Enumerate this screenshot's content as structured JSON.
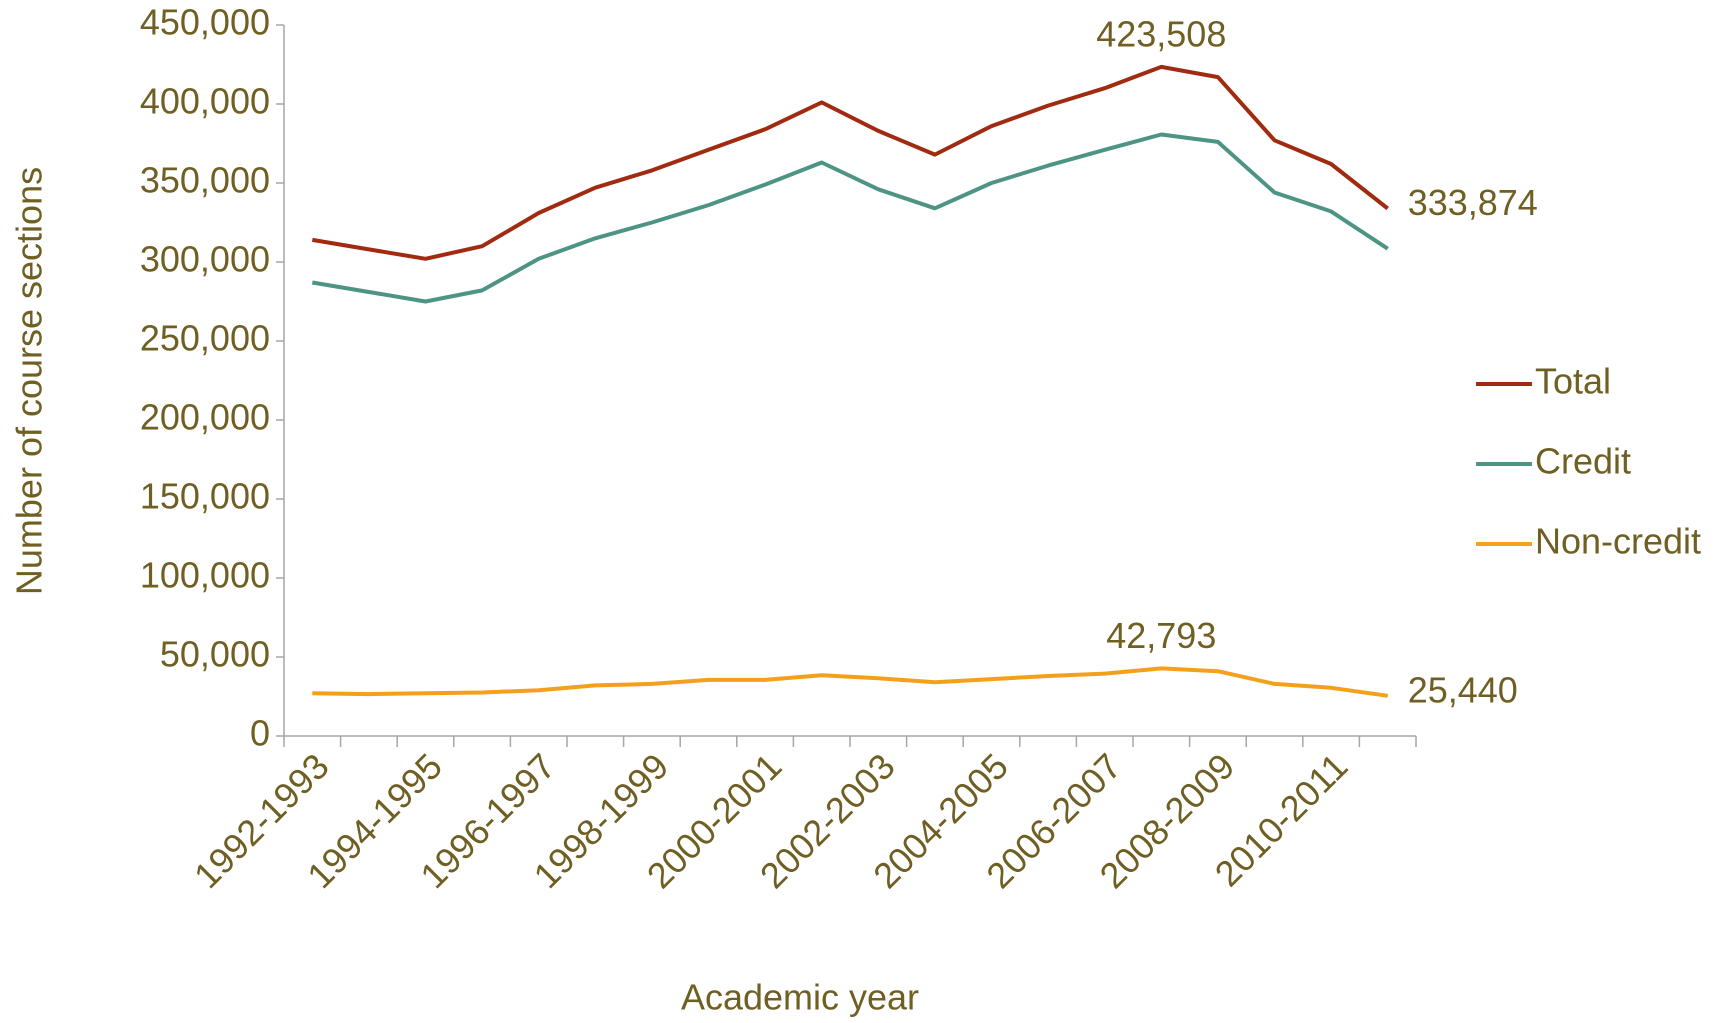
{
  "chart_data": {
    "type": "line",
    "x_label": "Academic year",
    "y_label": "Number of course sections",
    "categories": [
      "1992-1993",
      null,
      "1994-1995",
      null,
      "1996-1997",
      null,
      "1998-1999",
      null,
      "2000-2001",
      null,
      "2002-2003",
      null,
      "2004-2005",
      null,
      "2006-2007",
      null,
      "2008-2009",
      null,
      "2010-2011",
      null
    ],
    "series": [
      {
        "name": "Total",
        "color": "#a02b10",
        "values": [
          314000,
          308000,
          302000,
          310000,
          331000,
          347000,
          358000,
          371000,
          384000,
          401000,
          383000,
          368000,
          386000,
          399000,
          410000,
          423508,
          417000,
          377000,
          362000,
          333874
        ],
        "value_labels": [
          null,
          null,
          null,
          null,
          null,
          null,
          null,
          null,
          null,
          null,
          null,
          null,
          null,
          null,
          null,
          "423,508",
          null,
          null,
          null,
          "333,874"
        ]
      },
      {
        "name": "Credit",
        "color": "#4e9484",
        "values": [
          287000,
          281000,
          275000,
          282000,
          302000,
          315000,
          325000,
          336000,
          349000,
          363000,
          346000,
          334000,
          350000,
          361000,
          371000,
          380715,
          376000,
          344000,
          332000,
          308434
        ]
      },
      {
        "name": "Non-credit",
        "color": "#f5a01a",
        "values": [
          27000,
          26500,
          27000,
          27500,
          29000,
          32000,
          33000,
          35500,
          35500,
          38500,
          36500,
          34000,
          36000,
          38000,
          39500,
          42793,
          41000,
          33000,
          30500,
          25440
        ],
        "value_labels": [
          null,
          null,
          null,
          null,
          null,
          null,
          null,
          null,
          null,
          null,
          null,
          null,
          null,
          null,
          null,
          "42,793",
          null,
          null,
          null,
          "25,440"
        ]
      }
    ],
    "ylim": [
      0,
      450000
    ],
    "yticks": [
      0,
      {
        "value": 50000,
        "label": "50,000"
      },
      {
        "value": 100000,
        "label": "100,000"
      },
      {
        "value": 150000,
        "label": "150,000"
      },
      {
        "value": 200000,
        "label": "200,000"
      },
      {
        "value": 250000,
        "label": "250,000"
      },
      {
        "value": 300000,
        "label": "300,000"
      },
      {
        "value": 350000,
        "label": "350,000"
      },
      {
        "value": 400000,
        "label": "400,000"
      },
      {
        "value": 450000,
        "label": "450,000"
      }
    ],
    "legend": "right"
  }
}
